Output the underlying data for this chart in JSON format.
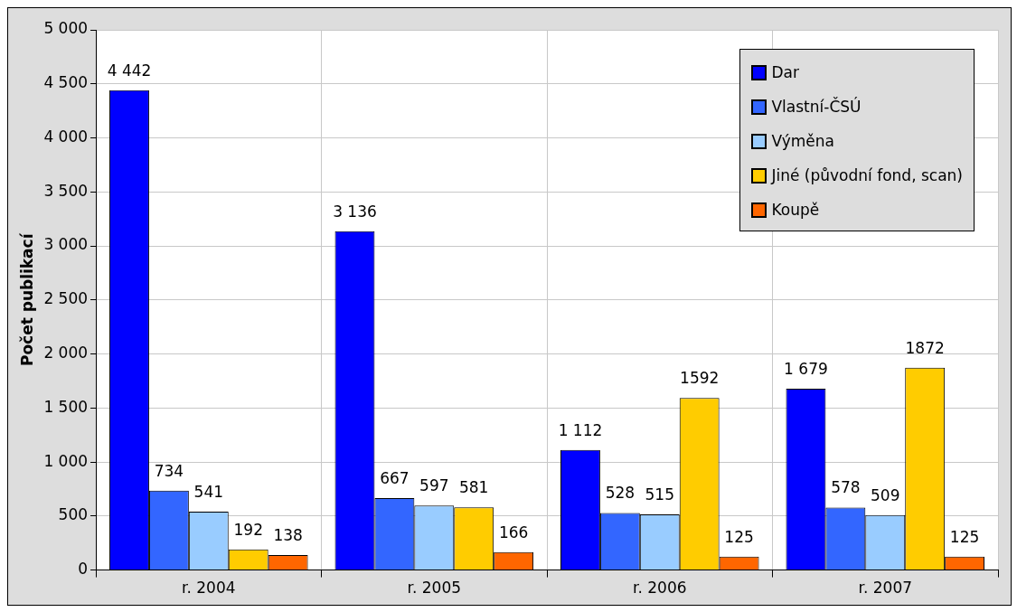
{
  "chart_data": {
    "type": "bar",
    "ylabel": "Počet publikací",
    "categories": [
      "r. 2004",
      "r. 2005",
      "r. 2006",
      "r. 2007"
    ],
    "series": [
      {
        "name": "Dar",
        "color": "#0000ff",
        "values": [
          4442,
          3136,
          1112,
          1679
        ],
        "value_labels": [
          "4 442",
          "3 136",
          "1 112",
          "1 679"
        ]
      },
      {
        "name": "Vlastní-ČSÚ",
        "color": "#3366ff",
        "values": [
          734,
          667,
          528,
          578
        ],
        "value_labels": [
          "734",
          "667",
          "528",
          "578"
        ]
      },
      {
        "name": "Výměna",
        "color": "#99ccff",
        "values": [
          541,
          597,
          515,
          509
        ],
        "value_labels": [
          "541",
          "597",
          "515",
          "509"
        ]
      },
      {
        "name": "Jiné (původní fond, scan)",
        "color": "#ffcc00",
        "values": [
          192,
          581,
          1592,
          1872
        ],
        "value_labels": [
          "192",
          "581",
          "1592",
          "1872"
        ]
      },
      {
        "name": "Koupě",
        "color": "#ff6600",
        "values": [
          138,
          166,
          125,
          125
        ],
        "value_labels": [
          "138",
          "166",
          "125",
          "125"
        ]
      }
    ],
    "ylim": [
      0,
      5000
    ],
    "yticks": [
      {
        "value": 0,
        "label": "0"
      },
      {
        "value": 500,
        "label": "500"
      },
      {
        "value": 1000,
        "label": "1 000"
      },
      {
        "value": 1500,
        "label": "1 500"
      },
      {
        "value": 2000,
        "label": "2 000"
      },
      {
        "value": 2500,
        "label": "2 500"
      },
      {
        "value": 3000,
        "label": "3 000"
      },
      {
        "value": 3500,
        "label": "3 500"
      },
      {
        "value": 4000,
        "label": "4 000"
      },
      {
        "value": 4500,
        "label": "4 500"
      },
      {
        "value": 5000,
        "label": "5 000"
      }
    ],
    "grid": true,
    "legend": "top right"
  }
}
